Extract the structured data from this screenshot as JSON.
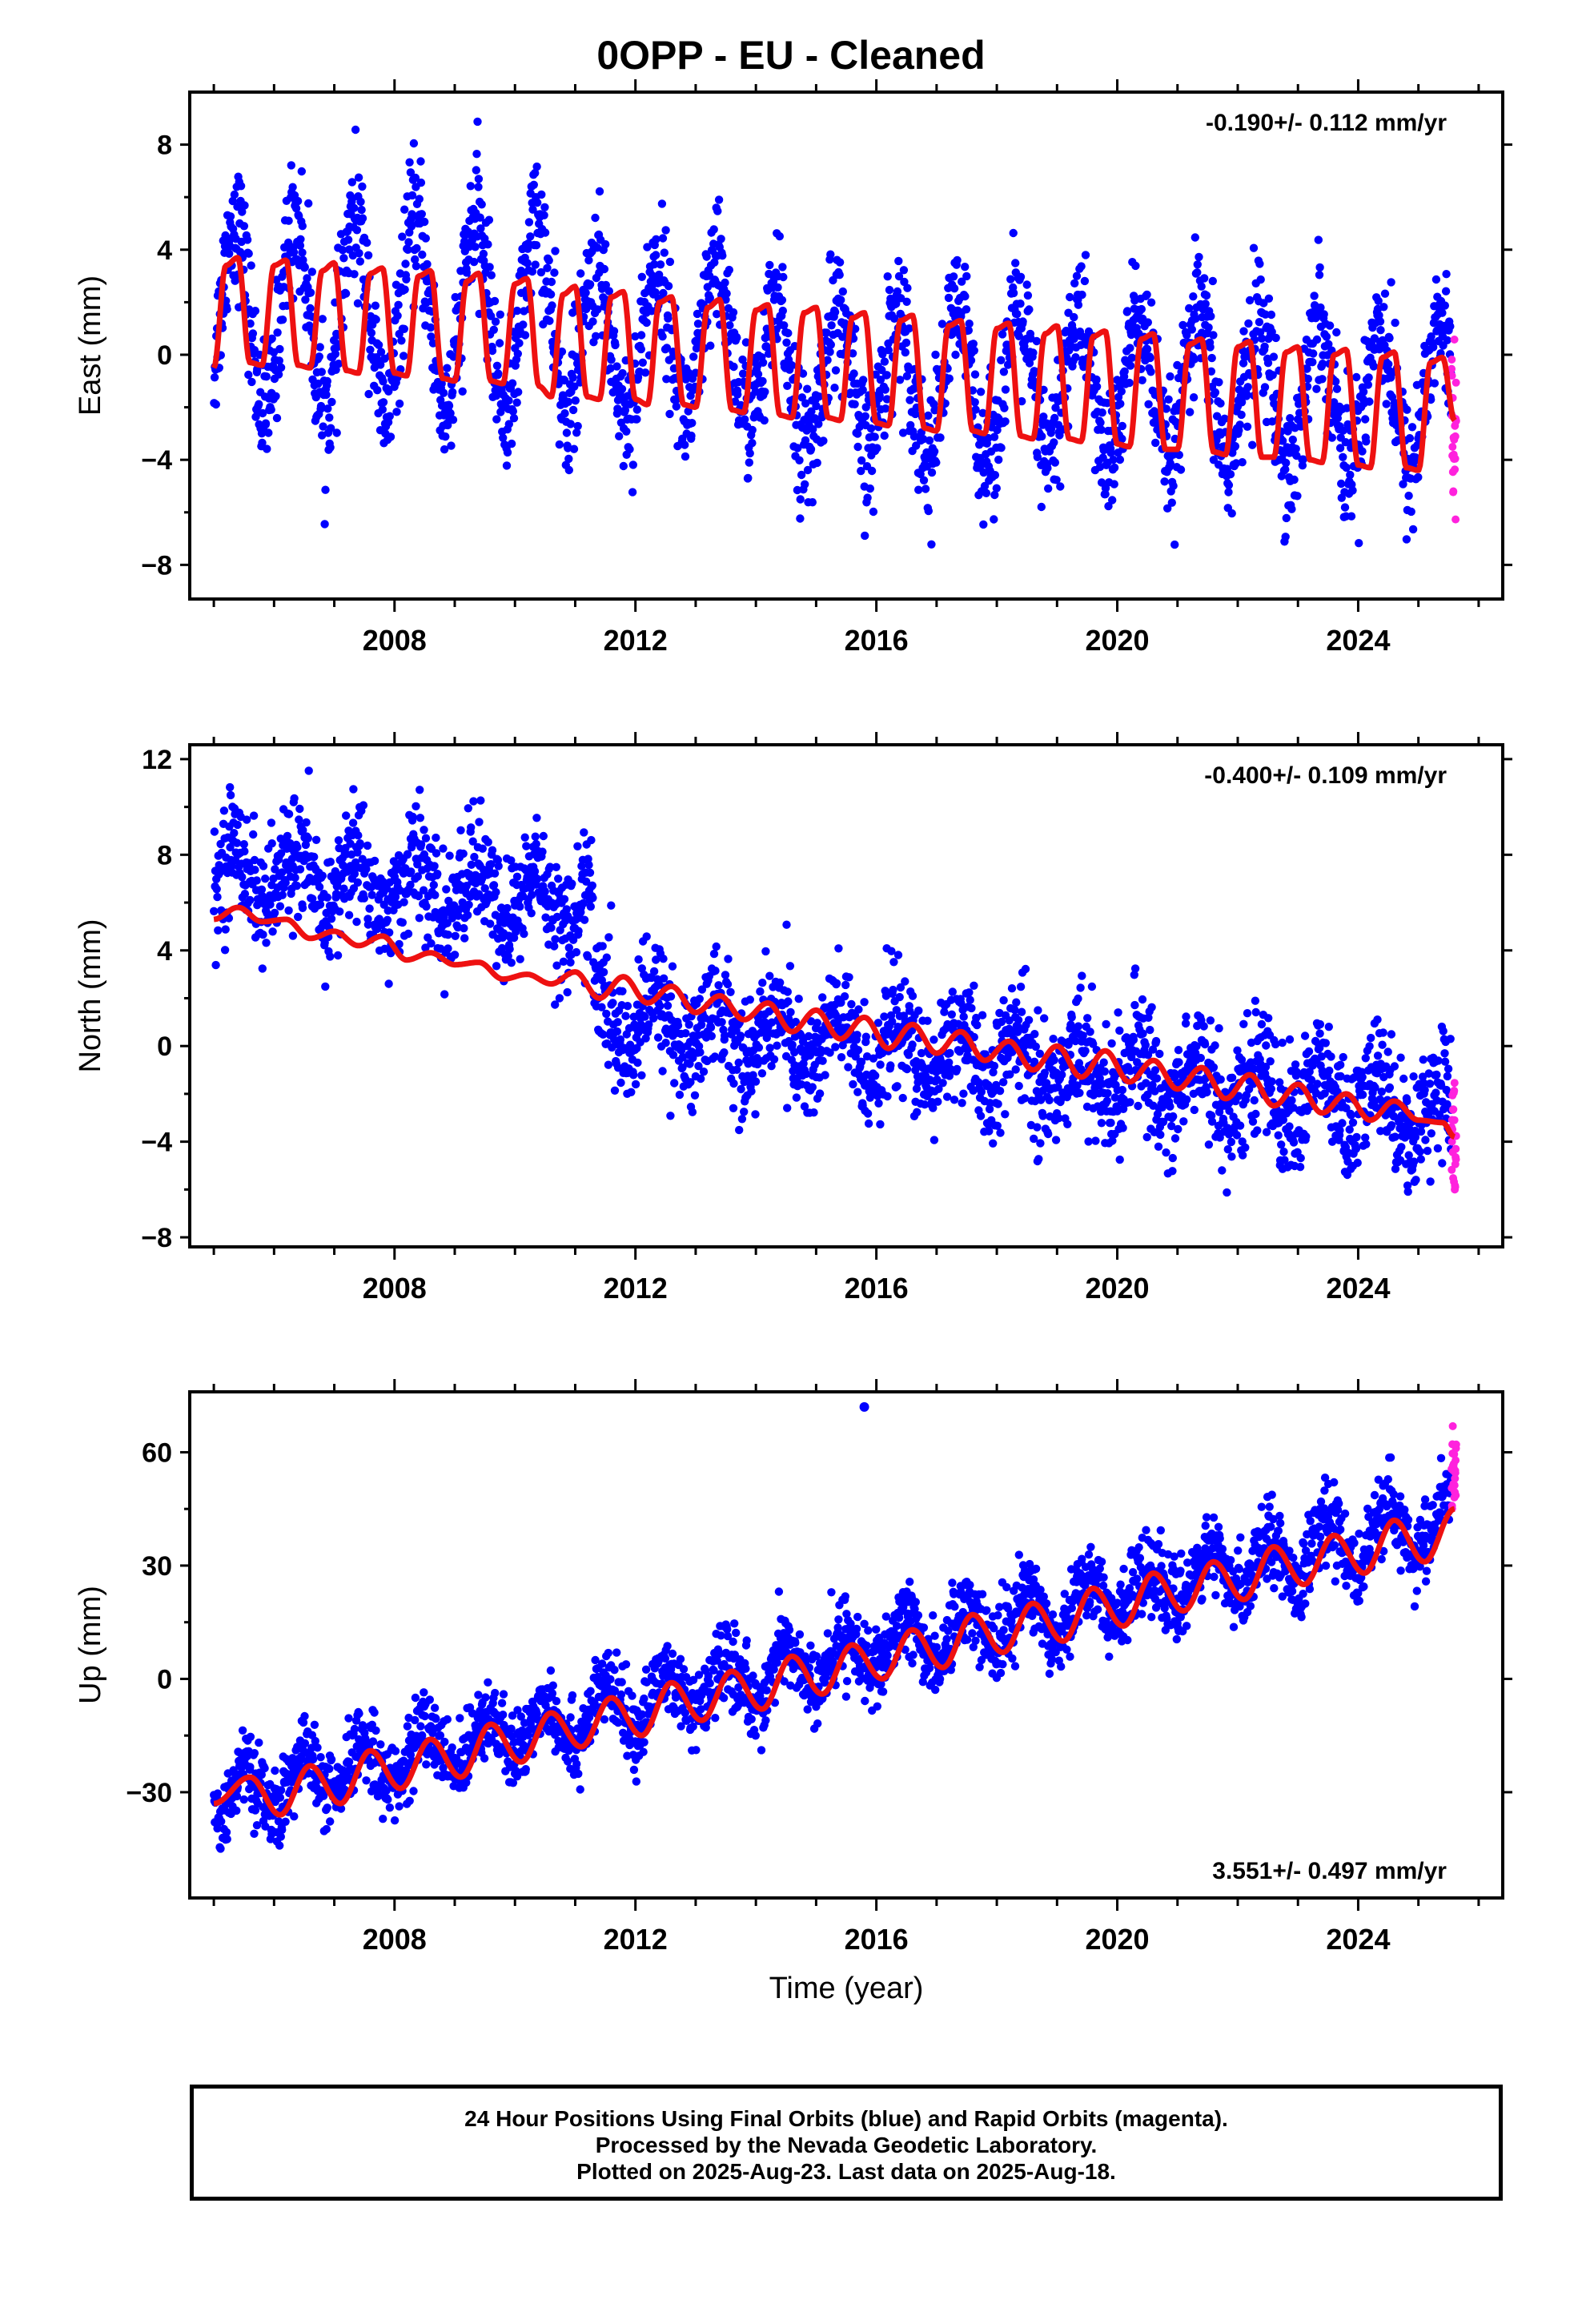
{
  "title": "0OPP  - EU - Cleaned",
  "colors": {
    "final": "#0000ff",
    "rapid": "#ff22dd",
    "model": "#ee1111"
  },
  "chart_data": [
    {
      "type": "scatter",
      "panel": "east",
      "ylabel": "East (mm)",
      "xlabel": "",
      "xlim": [
        2004.6,
        2026.4
      ],
      "ylim": [
        -9.3,
        10.0
      ],
      "xticks": [
        2008,
        2012,
        2016,
        2020,
        2024
      ],
      "yticks": [
        -8,
        -4,
        0,
        4,
        8
      ],
      "tick_labels": [
        "8",
        "4",
        "0",
        "−4",
        "−8"
      ],
      "rate_label": "-0.190+/- 0.112 mm/yr",
      "rate_position": "top-right",
      "data_start": 2005.0,
      "data_end": 2025.63,
      "rapid_start": 2025.55,
      "series": [
        {
          "name": "Final Orbits",
          "role": "final"
        },
        {
          "name": "Rapid Orbits",
          "role": "rapid"
        },
        {
          "name": "Model",
          "role": "model",
          "t": [
            2005.0,
            2005.2,
            2005.4,
            2005.6,
            2005.8,
            2006.0,
            2006.2,
            2006.4,
            2006.6,
            2006.8,
            2007.0,
            2007.2,
            2007.4,
            2007.6,
            2007.8,
            2008.0,
            2008.2,
            2008.4,
            2008.6,
            2008.8,
            2009.0,
            2009.2,
            2009.4,
            2009.6,
            2009.8,
            2010.0,
            2010.2,
            2010.4,
            2010.6,
            2010.8,
            2011.0,
            2011.2,
            2011.4,
            2011.6,
            2011.8,
            2012.0,
            2012.2,
            2012.4,
            2012.6,
            2012.8,
            2013.0,
            2013.2,
            2013.4,
            2013.6,
            2013.8,
            2014.0,
            2014.2,
            2014.4,
            2014.6,
            2014.8,
            2015.0,
            2015.2,
            2015.4,
            2015.6,
            2015.8,
            2016.0,
            2016.2,
            2016.4,
            2016.6,
            2016.8,
            2017.0,
            2017.2,
            2017.4,
            2017.6,
            2017.8,
            2018.0,
            2018.2,
            2018.4,
            2018.6,
            2018.8,
            2019.0,
            2019.2,
            2019.4,
            2019.6,
            2019.8,
            2020.0,
            2020.2,
            2020.4,
            2020.6,
            2020.8,
            2021.0,
            2021.2,
            2021.4,
            2021.6,
            2021.8,
            2022.0,
            2022.2,
            2022.4,
            2022.6,
            2022.8,
            2023.0,
            2023.2,
            2023.4,
            2023.6,
            2023.8,
            2024.0,
            2024.2,
            2024.4,
            2024.6,
            2024.8,
            2025.0,
            2025.2,
            2025.4,
            2025.6
          ],
          "y": [
            -0.5,
            3.4,
            3.7,
            -0.3,
            -0.4,
            3.4,
            3.6,
            -0.4,
            -0.5,
            3.2,
            3.5,
            -0.6,
            -0.7,
            3.1,
            3.3,
            -0.7,
            -0.8,
            3.0,
            3.2,
            -0.9,
            -1.0,
            2.8,
            3.1,
            -1.0,
            -1.1,
            2.7,
            2.9,
            -1.2,
            -1.6,
            2.3,
            2.6,
            -1.6,
            -1.7,
            2.2,
            2.4,
            -1.7,
            -1.9,
            2.0,
            2.2,
            -1.9,
            -2.0,
            1.8,
            2.1,
            -2.1,
            -2.2,
            1.7,
            1.9,
            -2.3,
            -2.4,
            1.6,
            1.8,
            -2.4,
            -2.5,
            1.4,
            1.6,
            -2.6,
            -2.7,
            1.3,
            1.5,
            -2.8,
            -2.9,
            1.1,
            1.3,
            -2.9,
            -3.0,
            1.0,
            1.2,
            -3.1,
            -3.2,
            0.8,
            1.1,
            -3.2,
            -3.3,
            0.7,
            0.9,
            -3.4,
            -3.5,
            0.6,
            0.8,
            -3.6,
            -3.6,
            0.4,
            0.6,
            -3.7,
            -3.8,
            0.3,
            0.5,
            -3.9,
            -3.9,
            0.1,
            0.3,
            -4.0,
            -4.1,
            0.0,
            0.2,
            -4.2,
            -4.3,
            -0.1,
            0.1,
            -4.3,
            -4.4,
            -0.3,
            -0.1,
            -2.5
          ]
        }
      ]
    },
    {
      "type": "scatter",
      "panel": "north",
      "ylabel": "North (mm)",
      "xlabel": "",
      "xlim": [
        2004.6,
        2026.4
      ],
      "ylim": [
        -8.4,
        12.6
      ],
      "xticks": [
        2008,
        2012,
        2016,
        2020,
        2024
      ],
      "yticks": [
        -8,
        -4,
        0,
        4,
        8,
        12
      ],
      "tick_labels": [
        "12",
        "8",
        "4",
        "0",
        "−4",
        "−8"
      ],
      "rate_label": "-0.400+/- 0.109 mm/yr",
      "rate_position": "top-right",
      "data_start": 2005.0,
      "data_end": 2025.63,
      "rapid_start": 2025.55,
      "series": [
        {
          "name": "Final Orbits",
          "role": "final"
        },
        {
          "name": "Rapid Orbits",
          "role": "rapid"
        },
        {
          "name": "Model",
          "role": "model",
          "t": [
            2005.0,
            2005.4,
            2005.8,
            2006.2,
            2006.6,
            2007.0,
            2007.4,
            2007.8,
            2008.2,
            2008.6,
            2009.0,
            2009.4,
            2009.8,
            2010.2,
            2010.6,
            2011.0,
            2011.4,
            2011.8,
            2012.2,
            2012.6,
            2013.0,
            2013.4,
            2013.8,
            2014.2,
            2014.6,
            2015.0,
            2015.4,
            2015.8,
            2016.2,
            2016.6,
            2017.0,
            2017.4,
            2017.8,
            2018.2,
            2018.6,
            2019.0,
            2019.4,
            2019.8,
            2020.2,
            2020.6,
            2021.0,
            2021.4,
            2021.8,
            2022.2,
            2022.6,
            2023.0,
            2023.4,
            2023.8,
            2024.2,
            2024.6,
            2025.0,
            2025.4,
            2025.6
          ],
          "y": [
            5.3,
            5.8,
            5.2,
            5.3,
            4.5,
            4.8,
            4.2,
            4.6,
            3.6,
            3.9,
            3.4,
            3.5,
            2.8,
            3.0,
            2.6,
            3.1,
            2.0,
            2.9,
            1.8,
            2.5,
            1.4,
            2.1,
            1.1,
            1.8,
            0.6,
            1.5,
            0.3,
            1.2,
            -0.1,
            0.9,
            -0.3,
            0.6,
            -0.6,
            0.2,
            -1.0,
            0.0,
            -1.3,
            -0.2,
            -1.5,
            -0.6,
            -1.8,
            -0.9,
            -2.2,
            -1.2,
            -2.5,
            -1.6,
            -2.8,
            -2.0,
            -3.1,
            -2.3,
            -3.1,
            -3.2,
            -3.8
          ]
        }
      ]
    },
    {
      "type": "scatter",
      "panel": "up",
      "ylabel": "Up (mm)",
      "xlabel": "Time (year)",
      "xlim": [
        2004.6,
        2026.4
      ],
      "ylim": [
        -58,
        76
      ],
      "xticks": [
        2008,
        2012,
        2016,
        2020,
        2024
      ],
      "yticks": [
        -30,
        0,
        30,
        60
      ],
      "tick_labels": [
        "60",
        "30",
        "0",
        "−30"
      ],
      "rate_label": "3.551+/- 0.497 mm/yr",
      "rate_position": "bottom-right",
      "data_start": 2005.0,
      "data_end": 2025.63,
      "rapid_start": 2025.55,
      "outlier": {
        "t": 2015.8,
        "y": 72
      },
      "series": [
        {
          "name": "Final Orbits",
          "role": "final"
        },
        {
          "name": "Rapid Orbits",
          "role": "rapid"
        },
        {
          "name": "Model",
          "role": "model",
          "t": [
            2005.0,
            2005.6,
            2006.1,
            2006.6,
            2007.1,
            2007.6,
            2008.1,
            2008.6,
            2009.1,
            2009.6,
            2010.1,
            2010.6,
            2011.1,
            2011.6,
            2012.1,
            2012.6,
            2013.1,
            2013.6,
            2014.1,
            2014.6,
            2015.1,
            2015.6,
            2016.1,
            2016.6,
            2017.1,
            2017.6,
            2018.1,
            2018.6,
            2019.1,
            2019.6,
            2020.1,
            2020.6,
            2021.1,
            2021.6,
            2022.1,
            2022.6,
            2023.1,
            2023.6,
            2024.1,
            2024.6,
            2025.1,
            2025.6
          ],
          "y": [
            -33,
            -26,
            -36,
            -23,
            -33,
            -19,
            -29,
            -16,
            -26,
            -12,
            -22,
            -9,
            -18,
            -5,
            -15,
            -1,
            -11,
            2,
            -8,
            6,
            -4,
            9,
            0,
            13,
            3,
            17,
            7,
            20,
            10,
            24,
            14,
            28,
            18,
            31,
            21,
            35,
            25,
            38,
            28,
            42,
            31,
            45
          ]
        }
      ]
    }
  ],
  "footer": {
    "line1": "24 Hour Positions Using Final Orbits (blue) and Rapid Orbits (magenta).",
    "line2": "Processed by the Nevada Geodetic Laboratory.",
    "line3": "Plotted on 2025-Aug-23. Last data on 2025-Aug-18."
  }
}
